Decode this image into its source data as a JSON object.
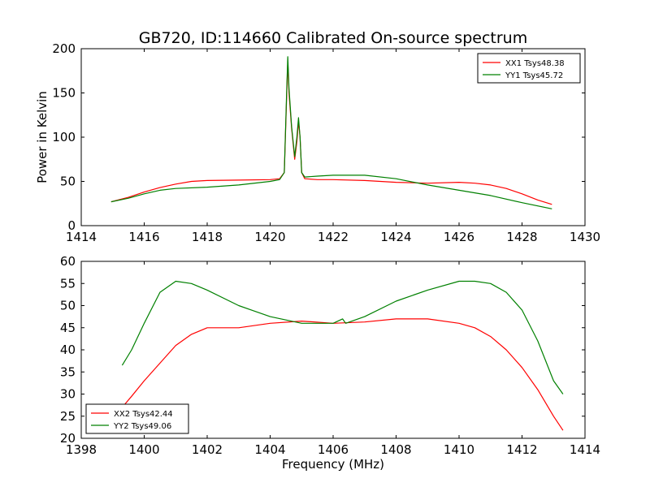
{
  "title": "GB720, ID:114660 Calibrated On-source spectrum",
  "xlabel": "Frequency (MHz)",
  "colors": {
    "red": "#ff0000",
    "green": "#008000"
  },
  "chart_data": [
    {
      "type": "line",
      "ylabel": "Power in Kelvin",
      "xlim": [
        1414,
        1430
      ],
      "ylim": [
        0,
        200
      ],
      "xticks": [
        1414,
        1416,
        1418,
        1420,
        1422,
        1424,
        1426,
        1428,
        1430
      ],
      "yticks": [
        0,
        50,
        100,
        150,
        200
      ],
      "legend_position": "top-right",
      "grid": false,
      "series": [
        {
          "name": "XX1 Tsys48.38",
          "color": "#ff0000",
          "points": [
            [
              1414.95,
              27
            ],
            [
              1415.5,
              32
            ],
            [
              1416,
              38
            ],
            [
              1416.5,
              43
            ],
            [
              1417,
              47
            ],
            [
              1417.5,
              50
            ],
            [
              1418,
              51
            ],
            [
              1419,
              51.5
            ],
            [
              1420,
              52
            ],
            [
              1420.3,
              53
            ],
            [
              1420.45,
              60
            ],
            [
              1420.52,
              140
            ],
            [
              1420.56,
              185
            ],
            [
              1420.6,
              150
            ],
            [
              1420.68,
              110
            ],
            [
              1420.78,
              75
            ],
            [
              1420.85,
              95
            ],
            [
              1420.9,
              118
            ],
            [
              1420.95,
              100
            ],
            [
              1421,
              60
            ],
            [
              1421.1,
              53
            ],
            [
              1421.5,
              52
            ],
            [
              1422,
              52
            ],
            [
              1423,
              51
            ],
            [
              1424,
              49
            ],
            [
              1425,
              48
            ],
            [
              1426,
              49
            ],
            [
              1426.5,
              48
            ],
            [
              1427,
              46
            ],
            [
              1427.5,
              42
            ],
            [
              1428,
              36
            ],
            [
              1428.5,
              29
            ],
            [
              1428.95,
              24
            ]
          ]
        },
        {
          "name": "YY1 Tsys45.72",
          "color": "#008000",
          "points": [
            [
              1414.95,
              27
            ],
            [
              1415.5,
              31
            ],
            [
              1416,
              36
            ],
            [
              1416.5,
              40
            ],
            [
              1417,
              42
            ],
            [
              1418,
              43.5
            ],
            [
              1419,
              46
            ],
            [
              1420,
              50
            ],
            [
              1420.3,
              52
            ],
            [
              1420.45,
              60
            ],
            [
              1420.52,
              145
            ],
            [
              1420.56,
              191
            ],
            [
              1420.6,
              155
            ],
            [
              1420.68,
              112
            ],
            [
              1420.78,
              78
            ],
            [
              1420.85,
              100
            ],
            [
              1420.9,
              122
            ],
            [
              1420.95,
              100
            ],
            [
              1421,
              60
            ],
            [
              1421.1,
              55
            ],
            [
              1421.5,
              56
            ],
            [
              1422,
              57
            ],
            [
              1423,
              57
            ],
            [
              1424,
              53
            ],
            [
              1425,
              46
            ],
            [
              1426,
              40
            ],
            [
              1427,
              34
            ],
            [
              1428,
              26
            ],
            [
              1428.95,
              19
            ]
          ]
        }
      ]
    },
    {
      "type": "line",
      "ylabel": "",
      "xlim": [
        1398,
        1414
      ],
      "ylim": [
        20,
        60
      ],
      "xticks": [
        1398,
        1400,
        1402,
        1404,
        1406,
        1408,
        1410,
        1412,
        1414
      ],
      "yticks": [
        20,
        25,
        30,
        35,
        40,
        45,
        50,
        55,
        60
      ],
      "legend_position": "bottom-left",
      "grid": false,
      "series": [
        {
          "name": "XX2 Tsys42.44",
          "color": "#ff0000",
          "points": [
            [
              1399.3,
              27
            ],
            [
              1399.6,
              29.5
            ],
            [
              1400,
              33
            ],
            [
              1400.5,
              37
            ],
            [
              1401,
              41
            ],
            [
              1401.5,
              43.5
            ],
            [
              1402,
              45
            ],
            [
              1403,
              45
            ],
            [
              1404,
              46
            ],
            [
              1405,
              46.5
            ],
            [
              1406,
              46
            ],
            [
              1407,
              46.3
            ],
            [
              1408,
              47
            ],
            [
              1409,
              47
            ],
            [
              1410,
              46
            ],
            [
              1410.5,
              45
            ],
            [
              1411,
              43
            ],
            [
              1411.5,
              40
            ],
            [
              1412,
              36
            ],
            [
              1412.5,
              31
            ],
            [
              1413,
              25
            ],
            [
              1413.3,
              21.8
            ]
          ]
        },
        {
          "name": "YY2 Tsys49.06",
          "color": "#008000",
          "points": [
            [
              1399.3,
              36.5
            ],
            [
              1399.6,
              40
            ],
            [
              1400,
              46
            ],
            [
              1400.5,
              53
            ],
            [
              1401,
              55.5
            ],
            [
              1401.5,
              55
            ],
            [
              1402,
              53.5
            ],
            [
              1403,
              50
            ],
            [
              1404,
              47.5
            ],
            [
              1405,
              46
            ],
            [
              1406,
              46
            ],
            [
              1406.3,
              47
            ],
            [
              1406.4,
              46
            ],
            [
              1407,
              47.5
            ],
            [
              1408,
              51
            ],
            [
              1409,
              53.5
            ],
            [
              1410,
              55.5
            ],
            [
              1410.5,
              55.5
            ],
            [
              1411,
              55
            ],
            [
              1411.5,
              53
            ],
            [
              1412,
              49
            ],
            [
              1412.5,
              42
            ],
            [
              1413,
              33
            ],
            [
              1413.3,
              30
            ]
          ]
        }
      ]
    }
  ]
}
